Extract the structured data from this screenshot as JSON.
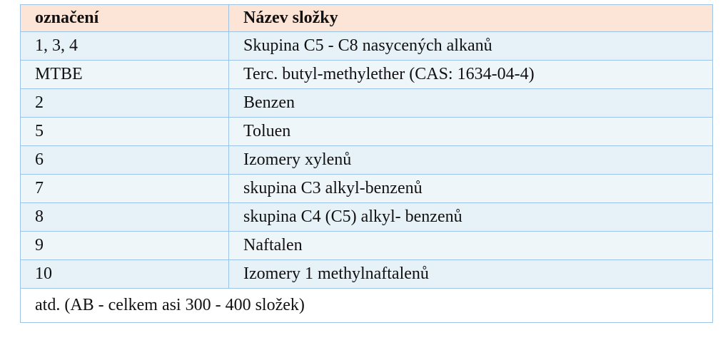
{
  "table": {
    "headers": [
      "označení",
      "Název složky"
    ],
    "rows": [
      {
        "code": "1, 3, 4",
        "name": "Skupina C5 - C8 nasycených alkanů"
      },
      {
        "code": "MTBE",
        "name": "Terc. butyl-methylether (CAS: 1634-04-4)"
      },
      {
        "code": "2",
        "name": "Benzen"
      },
      {
        "code": "5",
        "name": "Toluen"
      },
      {
        "code": "6",
        "name": "Izomery xylenů"
      },
      {
        "code": "7",
        "name": "skupina C3 alkyl-benzenů"
      },
      {
        "code": "8",
        "name": "skupina C4 (C5) alkyl- benzenů"
      },
      {
        "code": "9",
        "name": "Naftalen"
      },
      {
        "code": "10",
        "name": "Izomery 1 methylnaftalenů"
      }
    ],
    "footer": "atd. (AB - celkem asi 300 - 400 složek)"
  },
  "colors": {
    "header_bg": "#fce4d6",
    "row_bg": "#e6f2f8",
    "border": "#9dc3e6"
  }
}
